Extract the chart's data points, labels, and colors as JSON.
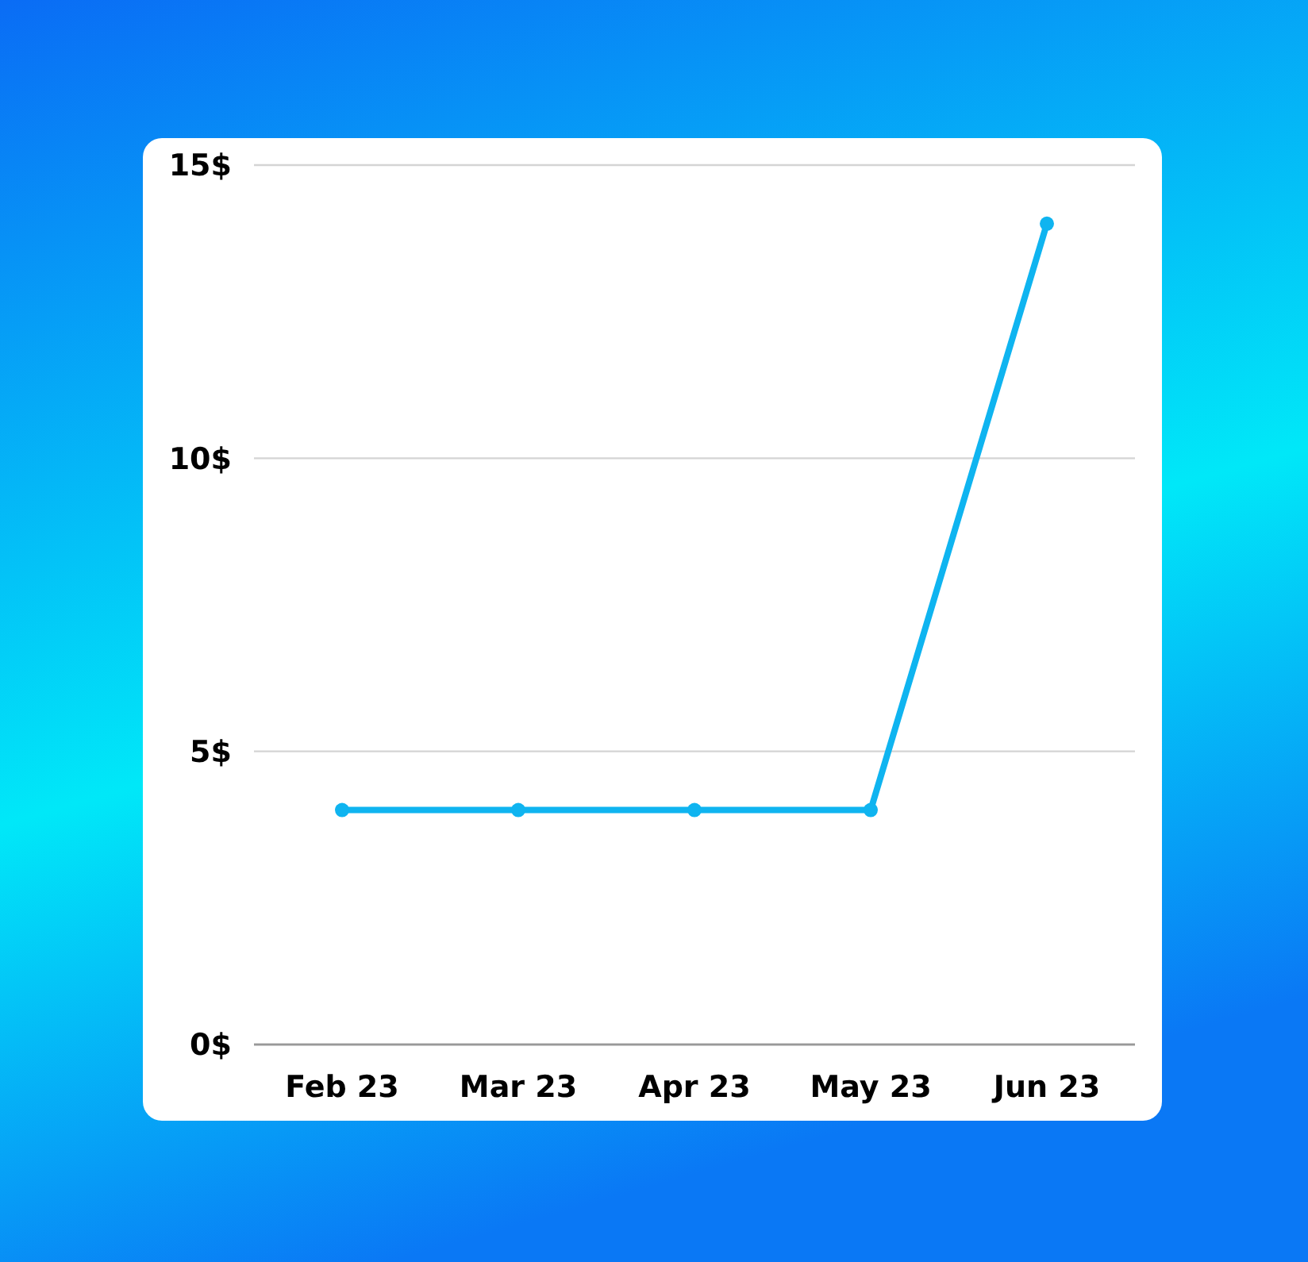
{
  "chart_data": {
    "type": "line",
    "categories": [
      "Feb 23",
      "Mar 23",
      "Apr 23",
      "May 23",
      "Jun 23"
    ],
    "series": [
      {
        "color": "#0fb4f0",
        "values": [
          4,
          4,
          4,
          4,
          14
        ]
      }
    ],
    "ylim": [
      0,
      15
    ],
    "yticks": [
      {
        "value": 0,
        "label": "0$"
      },
      {
        "value": 5,
        "label": "5$"
      },
      {
        "value": 10,
        "label": "10$"
      },
      {
        "value": 15,
        "label": "15$"
      }
    ],
    "grid": "y",
    "marker": "circle"
  }
}
